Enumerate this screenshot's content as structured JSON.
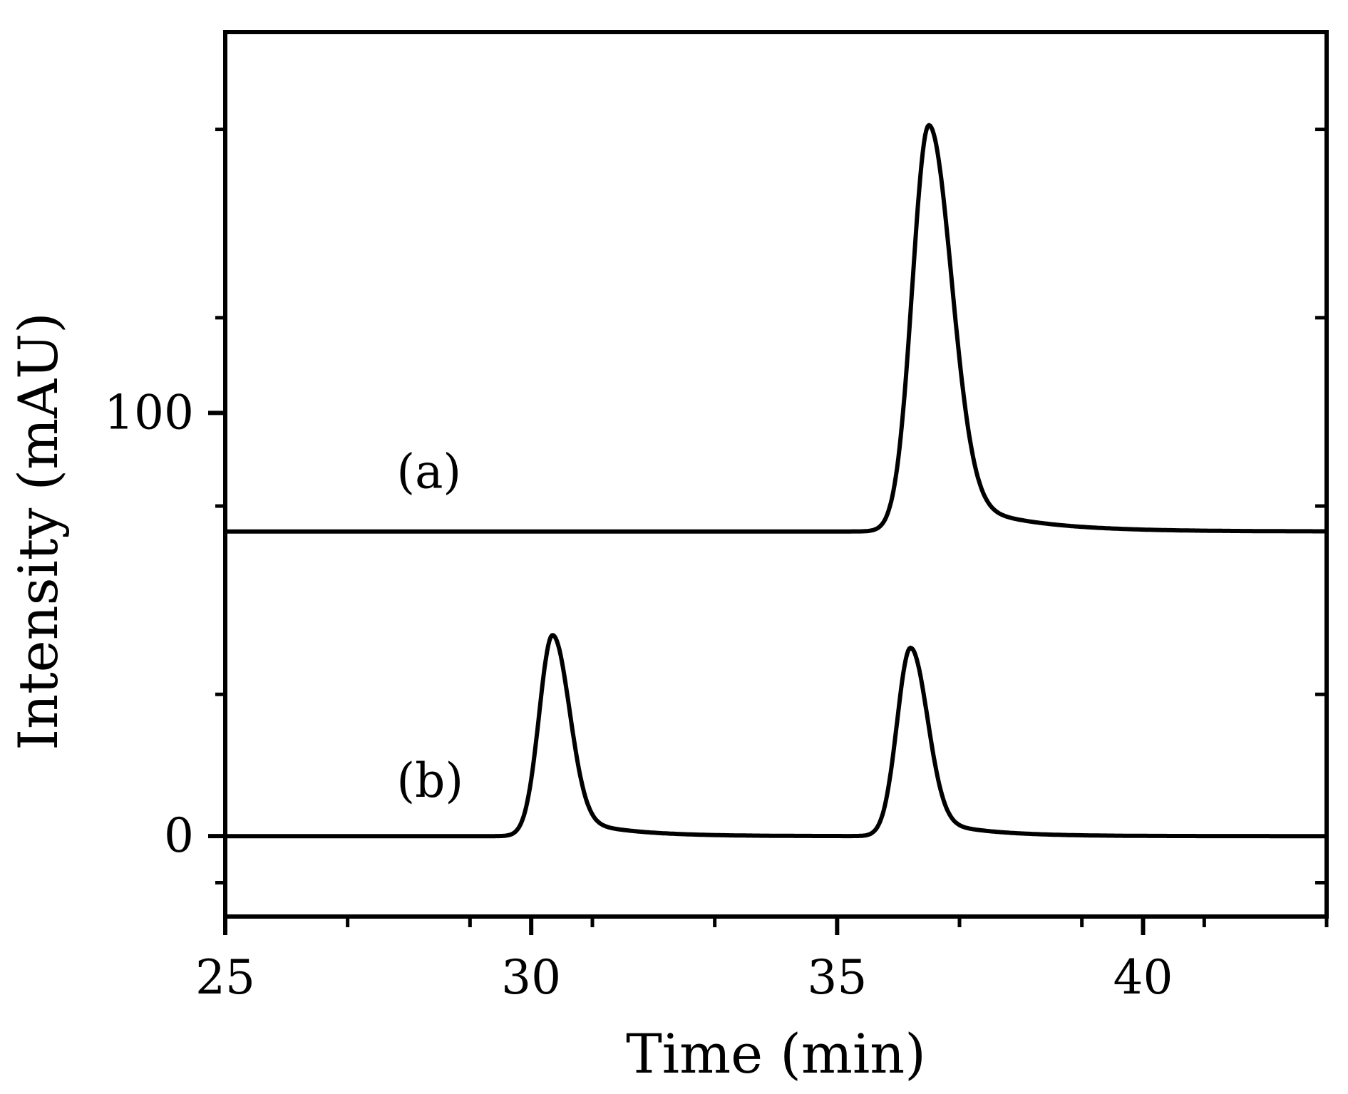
{
  "chart_data": {
    "type": "line",
    "title": "",
    "xlabel": "Time (min)",
    "ylabel": "Intensity (mAU)",
    "xlim": [
      25,
      43
    ],
    "ylim": [
      -19,
      190
    ],
    "x_major_ticks": [
      25,
      30,
      35,
      40
    ],
    "x_minor_ticks": [
      27,
      29,
      31,
      33,
      37,
      39,
      41,
      43
    ],
    "y_major_ticks": [
      0,
      100
    ],
    "y_minor_ticks": [
      -11,
      33.5,
      78,
      122.5,
      167
    ],
    "y_right_ticks": [
      -11,
      33.5,
      78,
      122.5,
      167
    ],
    "grid": false,
    "legend": "none",
    "series": [
      {
        "name": "(a)",
        "label_at": [
          27.8,
          86
        ],
        "baseline": 72,
        "peaks": [
          {
            "center": 36.5,
            "height": 96,
            "sigma_left": 0.27,
            "sigma_right": 0.36,
            "tail_amp": 0.11,
            "tail_tau": 1.1
          }
        ]
      },
      {
        "name": "(b)",
        "label_at": [
          27.8,
          13
        ],
        "baseline": 0,
        "peaks": [
          {
            "center": 30.35,
            "height": 47.5,
            "sigma_left": 0.22,
            "sigma_right": 0.27,
            "tail_amp": 0.12,
            "tail_tau": 0.85
          },
          {
            "center": 36.2,
            "height": 44.5,
            "sigma_left": 0.22,
            "sigma_right": 0.27,
            "tail_amp": 0.12,
            "tail_tau": 0.85
          }
        ]
      }
    ]
  },
  "ui": {
    "line_color": "#000000",
    "background": "#ffffff"
  }
}
